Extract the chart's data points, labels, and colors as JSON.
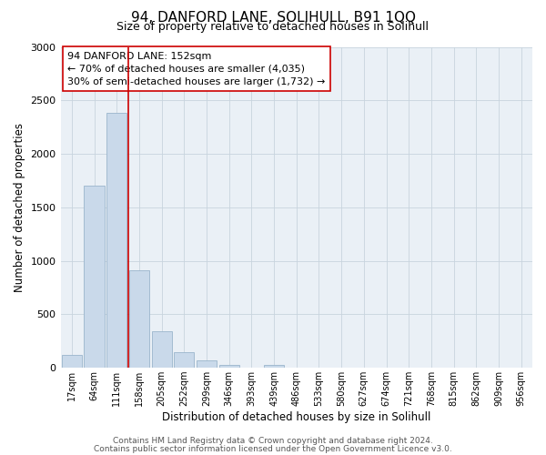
{
  "title": "94, DANFORD LANE, SOLIHULL, B91 1QQ",
  "subtitle": "Size of property relative to detached houses in Solihull",
  "xlabel": "Distribution of detached houses by size in Solihull",
  "ylabel": "Number of detached properties",
  "bar_values": [
    120,
    1700,
    2380,
    910,
    340,
    150,
    70,
    30,
    0,
    30,
    0,
    0,
    0,
    0,
    0,
    0,
    0,
    0,
    0,
    0,
    0
  ],
  "bar_labels": [
    "17sqm",
    "64sqm",
    "111sqm",
    "158sqm",
    "205sqm",
    "252sqm",
    "299sqm",
    "346sqm",
    "393sqm",
    "439sqm",
    "486sqm",
    "533sqm",
    "580sqm",
    "627sqm",
    "674sqm",
    "721sqm",
    "768sqm",
    "815sqm",
    "862sqm",
    "909sqm",
    "956sqm"
  ],
  "bar_color": "#c9d9ea",
  "bar_edgecolor": "#9ab5cc",
  "vline_color": "#cc0000",
  "vline_x_index": 2.5,
  "annotation_line1": "94 DANFORD LANE: 152sqm",
  "annotation_line2": "← 70% of detached houses are smaller (4,035)",
  "annotation_line3": "30% of semi-detached houses are larger (1,732) →",
  "ylim": [
    0,
    3000
  ],
  "yticks": [
    0,
    500,
    1000,
    1500,
    2000,
    2500,
    3000
  ],
  "footer_line1": "Contains HM Land Registry data © Crown copyright and database right 2024.",
  "footer_line2": "Contains public sector information licensed under the Open Government Licence v3.0.",
  "background_color": "#ffffff",
  "plot_bg_color": "#eaf0f6",
  "grid_color": "#c8d4de",
  "title_fontsize": 11,
  "subtitle_fontsize": 9,
  "axis_label_fontsize": 8.5,
  "tick_fontsize": 7,
  "annotation_fontsize": 8,
  "footer_fontsize": 6.5
}
